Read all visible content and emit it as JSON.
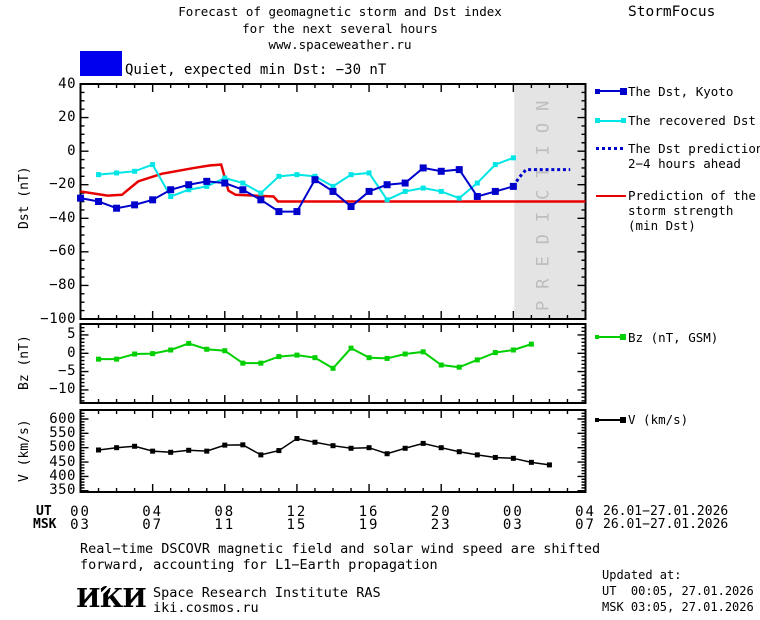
{
  "header": {
    "title_line1": "Forecast of geomagnetic storm and Dst index",
    "title_line2": "for the next several hours",
    "title_line3": "www.spaceweather.ru",
    "brand": "StormFocus"
  },
  "status": {
    "label": "Quiet, expected min Dst: −30 nT",
    "box_color": "#0000ee"
  },
  "legend": {
    "kyoto": "The Dst, Kyoto",
    "recovered": "The recovered Dst",
    "pred1": "The Dst prediction",
    "pred2": "2−4 hours ahead",
    "storm1": "Prediction of the",
    "storm2": "storm strength",
    "storm3": "(min Dst)",
    "bz": "Bz (nT, GSM)",
    "v": "V (km/s)"
  },
  "axes": {
    "ut_label": "UT",
    "msk_label": "MSK",
    "ut_hours": [
      "00",
      "04",
      "08",
      "12",
      "16",
      "20",
      "00",
      "04"
    ],
    "msk_hours": [
      "03",
      "07",
      "11",
      "15",
      "19",
      "23",
      "03",
      "07"
    ],
    "tick_hours": [
      0,
      4,
      8,
      12,
      16,
      20,
      24,
      28
    ],
    "date_range_ut": "26.01−27.01.2026",
    "date_range_msk": "26.01−27.01.2026",
    "dst_title": "Dst (nT)",
    "bz_title": "Bz (nT)",
    "v_title": "V (km/s)"
  },
  "prediction_band": {
    "label": "PREDICTION",
    "fill": "#e4e4e4",
    "text_color": "#bdbdbd",
    "start_hour": 24.05
  },
  "footer": {
    "note_line1": "Real−time DSCOVR magnetic field and solar wind speed are shifted",
    "note_line2": "forward, accounting for L1−Earth propagation",
    "logo": "ИКИ",
    "institute": "Space Research Institute RAS",
    "website": "iki.cosmos.ru",
    "updated_label": "Updated at:",
    "updated_ut": "UT  00:05, 27.01.2026",
    "updated_msk": "MSK 03:05, 27.01.2026"
  },
  "chart_data": [
    {
      "type": "line",
      "panel": "dst",
      "ylabel": "Dst (nT)",
      "ylim": [
        -100,
        40
      ],
      "yticks": [
        40,
        20,
        0,
        -20,
        -40,
        -60,
        -80,
        -100
      ],
      "ytick_labels": [
        "40",
        "20",
        "0",
        "−20",
        "−40",
        "−60",
        "−80",
        "−100"
      ],
      "xlim": [
        0,
        28
      ],
      "series": [
        {
          "name": "Prediction of the storm strength (min Dst)",
          "color": "#e80000",
          "width": 2.5,
          "x": [
            0,
            1.5,
            2.3,
            3.2,
            4.5,
            6.3,
            7.2,
            7.8,
            8.2,
            8.6,
            10.7,
            10.95,
            28
          ],
          "y": [
            -24,
            -26.5,
            -26,
            -18,
            -13.5,
            -10,
            -8.5,
            -8,
            -23.5,
            -26,
            -27,
            -30,
            -30
          ]
        },
        {
          "name": "The recovered Dst",
          "color": "#00e5e5",
          "marker": 5,
          "width": 2,
          "x": [
            1,
            2,
            3,
            4,
            5,
            6,
            7,
            8,
            9,
            10,
            11,
            12,
            13,
            14,
            15,
            16,
            17,
            18,
            19,
            20,
            21,
            22,
            23,
            24
          ],
          "y": [
            -14,
            -13,
            -12,
            -8,
            -27,
            -23,
            -21,
            -16,
            -19,
            -25,
            -15,
            -14,
            -15,
            -21,
            -14,
            -13,
            -29,
            -24,
            -22,
            -24,
            -28,
            -19,
            -8,
            -4
          ]
        },
        {
          "name": "The Dst, Kyoto",
          "color": "#0000cd",
          "marker": 7,
          "width": 2,
          "x": [
            0,
            1,
            2,
            3,
            4,
            5,
            6,
            7,
            8,
            9,
            10,
            11,
            12,
            13,
            14,
            15,
            16,
            17,
            18,
            19,
            20,
            21,
            22,
            23,
            24
          ],
          "y": [
            -28,
            -30,
            -34,
            -32,
            -29,
            -23,
            -20,
            -18,
            -19,
            -23,
            -29,
            -36,
            -36,
            -17,
            -24,
            -33,
            -24,
            -20,
            -19,
            -10,
            -12,
            -11,
            -27,
            -24,
            -21
          ]
        },
        {
          "name": "The Dst prediction 2−4 hours ahead",
          "color": "#0000cd",
          "style": "dotted",
          "width": 3,
          "x": [
            24,
            24.3,
            24.7,
            27.15
          ],
          "y": [
            -21,
            -16,
            -11,
            -11
          ]
        }
      ]
    },
    {
      "type": "line",
      "panel": "bz",
      "ylabel": "Bz (nT)",
      "ylim": [
        -13.58,
        8.0
      ],
      "yticks": [
        5,
        0,
        -5,
        -10
      ],
      "ytick_labels": [
        "5",
        "0",
        "−5",
        "−10"
      ],
      "xlim": [
        0,
        28
      ],
      "series": [
        {
          "name": "Bz (nT, GSM)",
          "color": "#00cf00",
          "marker": 5,
          "width": 2,
          "x": [
            1,
            2,
            3,
            4,
            5,
            6,
            7,
            8,
            9,
            10,
            11,
            12,
            13,
            14,
            15,
            16,
            17,
            18,
            19,
            20,
            21,
            22,
            23,
            24,
            25
          ],
          "y": [
            -1.6,
            -1.6,
            -0.2,
            -0.1,
            0.9,
            2.7,
            1.1,
            0.7,
            -2.7,
            -2.7,
            -0.9,
            -0.5,
            -1.2,
            -4.1,
            1.4,
            -1.2,
            -1.4,
            -0.2,
            0.4,
            -3.2,
            -3.8,
            -1.8,
            0.2,
            0.9,
            2.5
          ]
        }
      ]
    },
    {
      "type": "line",
      "panel": "v",
      "ylabel": "V (km/s)",
      "ylim": [
        345.6,
        631.4
      ],
      "yticks": [
        600,
        550,
        500,
        450,
        400,
        350
      ],
      "ytick_labels": [
        "600",
        "550",
        "500",
        "450",
        "400",
        "350"
      ],
      "xlim": [
        0,
        28
      ],
      "series": [
        {
          "name": "V (km/s)",
          "color": "#000000",
          "marker": 5,
          "width": 1.5,
          "x": [
            1,
            2,
            3,
            4,
            5,
            6,
            7,
            8,
            9,
            10,
            11,
            12,
            13,
            14,
            15,
            16,
            17,
            18,
            19,
            20,
            21,
            22,
            23,
            24,
            25,
            26
          ],
          "y": [
            492,
            500,
            505,
            488,
            484,
            491,
            488,
            509,
            510,
            475,
            490,
            532,
            519,
            507,
            498,
            500,
            479,
            498,
            515,
            500,
            486,
            475,
            466,
            463,
            449,
            440
          ]
        }
      ]
    }
  ]
}
